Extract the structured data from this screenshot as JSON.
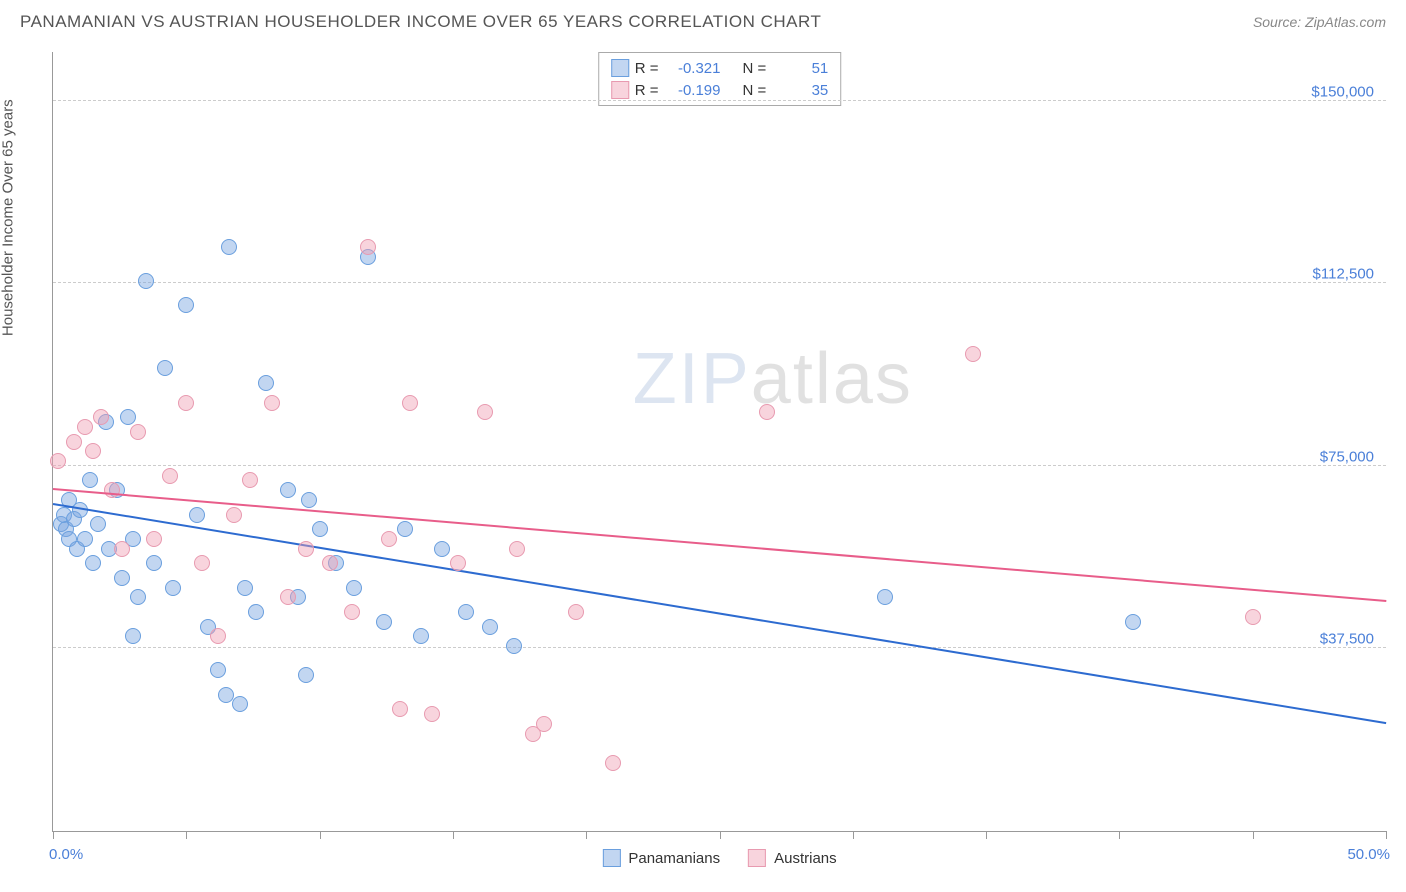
{
  "header": {
    "title": "PANAMANIAN VS AUSTRIAN HOUSEHOLDER INCOME OVER 65 YEARS CORRELATION CHART",
    "source": "Source: ZipAtlas.com"
  },
  "watermark": {
    "zip": "ZIP",
    "atlas": "atlas"
  },
  "chart": {
    "type": "scatter",
    "ylabel": "Householder Income Over 65 years",
    "xlabel_min": "0.0%",
    "xlabel_max": "50.0%",
    "xlim": [
      0,
      50
    ],
    "ylim": [
      0,
      160000
    ],
    "xtick_step": 5,
    "yticks": [
      37500,
      75000,
      112500,
      150000
    ],
    "ytick_labels": [
      "$37,500",
      "$75,000",
      "$112,500",
      "$150,000"
    ],
    "background_color": "#ffffff",
    "grid_color": "#cccccc",
    "axis_color": "#999999",
    "label_color": "#4a7fd8",
    "label_fontsize": 15,
    "title_fontsize": 17,
    "marker_radius": 8,
    "line_width": 2,
    "series": [
      {
        "name": "Panamanians",
        "color_fill": "rgba(120,165,225,0.45)",
        "color_stroke": "#6a9fde",
        "line_color": "#2d6bd0",
        "R": "-0.321",
        "N": "51",
        "trend": {
          "x1": 0,
          "y1": 67000,
          "x2": 50,
          "y2": 22000
        },
        "points": [
          [
            0.3,
            63000
          ],
          [
            0.4,
            65000
          ],
          [
            0.5,
            62000
          ],
          [
            0.6,
            68000
          ],
          [
            0.6,
            60000
          ],
          [
            0.8,
            64000
          ],
          [
            0.9,
            58000
          ],
          [
            1.0,
            66000
          ],
          [
            1.2,
            60000
          ],
          [
            1.4,
            72000
          ],
          [
            1.5,
            55000
          ],
          [
            1.7,
            63000
          ],
          [
            2.0,
            84000
          ],
          [
            2.1,
            58000
          ],
          [
            2.4,
            70000
          ],
          [
            2.6,
            52000
          ],
          [
            2.8,
            85000
          ],
          [
            3.0,
            60000
          ],
          [
            3.2,
            48000
          ],
          [
            3.5,
            113000
          ],
          [
            3.8,
            55000
          ],
          [
            4.2,
            95000
          ],
          [
            4.5,
            50000
          ],
          [
            3.0,
            40000
          ],
          [
            5.0,
            108000
          ],
          [
            5.4,
            65000
          ],
          [
            5.8,
            42000
          ],
          [
            6.2,
            33000
          ],
          [
            6.6,
            120000
          ],
          [
            6.5,
            28000
          ],
          [
            7.2,
            50000
          ],
          [
            7.6,
            45000
          ],
          [
            8.0,
            92000
          ],
          [
            7.0,
            26000
          ],
          [
            8.8,
            70000
          ],
          [
            9.6,
            68000
          ],
          [
            9.2,
            48000
          ],
          [
            10.0,
            62000
          ],
          [
            10.6,
            55000
          ],
          [
            11.3,
            50000
          ],
          [
            11.8,
            118000
          ],
          [
            12.4,
            43000
          ],
          [
            13.2,
            62000
          ],
          [
            13.8,
            40000
          ],
          [
            14.6,
            58000
          ],
          [
            15.5,
            45000
          ],
          [
            16.4,
            42000
          ],
          [
            17.3,
            38000
          ],
          [
            31.2,
            48000
          ],
          [
            40.5,
            43000
          ],
          [
            9.5,
            32000
          ]
        ]
      },
      {
        "name": "Austrians",
        "color_fill": "rgba(240,160,180,0.45)",
        "color_stroke": "#e89ab0",
        "line_color": "#e85d8a",
        "R": "-0.199",
        "N": "35",
        "trend": {
          "x1": 0,
          "y1": 70000,
          "x2": 50,
          "y2": 47000
        },
        "points": [
          [
            0.2,
            76000
          ],
          [
            0.8,
            80000
          ],
          [
            1.2,
            83000
          ],
          [
            1.5,
            78000
          ],
          [
            1.8,
            85000
          ],
          [
            2.2,
            70000
          ],
          [
            2.6,
            58000
          ],
          [
            3.2,
            82000
          ],
          [
            3.8,
            60000
          ],
          [
            4.4,
            73000
          ],
          [
            5.0,
            88000
          ],
          [
            5.6,
            55000
          ],
          [
            6.2,
            40000
          ],
          [
            6.8,
            65000
          ],
          [
            7.4,
            72000
          ],
          [
            8.2,
            88000
          ],
          [
            8.8,
            48000
          ],
          [
            9.5,
            58000
          ],
          [
            10.4,
            55000
          ],
          [
            11.2,
            45000
          ],
          [
            11.8,
            120000
          ],
          [
            12.6,
            60000
          ],
          [
            13.4,
            88000
          ],
          [
            14.2,
            24000
          ],
          [
            15.2,
            55000
          ],
          [
            16.2,
            86000
          ],
          [
            17.4,
            58000
          ],
          [
            18.4,
            22000
          ],
          [
            19.6,
            45000
          ],
          [
            21.0,
            14000
          ],
          [
            26.8,
            86000
          ],
          [
            34.5,
            98000
          ],
          [
            45.0,
            44000
          ],
          [
            18.0,
            20000
          ],
          [
            13.0,
            25000
          ]
        ]
      }
    ],
    "corr_legend": {
      "r_label": "R =",
      "n_label": "N ="
    },
    "series_legend_labels": [
      "Panamanians",
      "Austrians"
    ]
  }
}
